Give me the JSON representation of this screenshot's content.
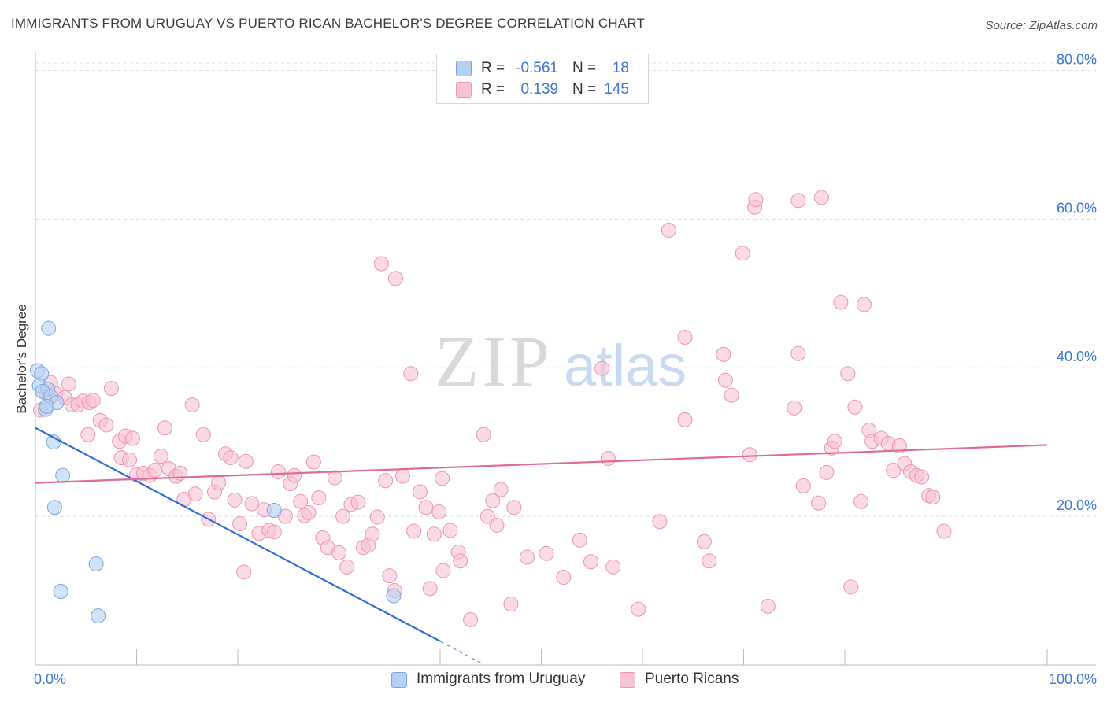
{
  "title": "IMMIGRANTS FROM URUGUAY VS PUERTO RICAN BACHELOR'S DEGREE CORRELATION CHART",
  "source": "Source: ZipAtlas.com",
  "watermark": {
    "zip": "ZIP",
    "atlas": "atlas"
  },
  "colors": {
    "blue_fill": "#b6d0f2",
    "blue_stroke": "#7aa5e0",
    "blue_line": "#2d6fd4",
    "pink_fill": "#f7c2d2",
    "pink_stroke": "#eb95b0",
    "pink_line": "#e0689a",
    "accent_text": "#3d77d0",
    "grid": "#dcdcdc"
  },
  "legend_top": {
    "rows": [
      {
        "series": "Immigrants from Uruguay",
        "r_label": "R =",
        "r_value": "-0.561",
        "n_label": "N =",
        "n_value": "18"
      },
      {
        "series": "Puerto Ricans",
        "r_label": "R =",
        "r_value": "0.139",
        "n_label": "N =",
        "n_value": "145"
      }
    ]
  },
  "chart_data": {
    "type": "scatter",
    "title": "IMMIGRANTS FROM URUGUAY VS PUERTO RICAN BACHELOR'S DEGREE CORRELATION CHART",
    "xlabel": "",
    "ylabel": "Bachelor's Degree",
    "xlim": [
      0,
      100
    ],
    "ylim": [
      0,
      81
    ],
    "x_tick_labels": [
      "0.0%",
      "100.0%"
    ],
    "y_tick_values": [
      20,
      40,
      60,
      80
    ],
    "y_tick_labels": [
      "20.0%",
      "40.0%",
      "60.0%",
      "80.0%"
    ],
    "grid": true,
    "legend_position": "bottom",
    "series": [
      {
        "name": "Immigrants from Uruguay",
        "color": "#b6d0f2",
        "trend": {
          "x": [
            0,
            40
          ],
          "y": [
            31.9,
            3.2
          ],
          "dashed_to": [
            44,
            0.3
          ]
        },
        "points": [
          [
            0.2,
            39.6
          ],
          [
            0.6,
            39.2
          ],
          [
            0.4,
            37.6
          ],
          [
            1.2,
            37.1
          ],
          [
            0.7,
            36.8
          ],
          [
            1.5,
            36.1
          ],
          [
            2.1,
            35.3
          ],
          [
            1.0,
            34.4
          ],
          [
            1.3,
            45.3
          ],
          [
            1.8,
            30.0
          ],
          [
            2.7,
            25.5
          ],
          [
            1.9,
            21.2
          ],
          [
            23.6,
            20.8
          ],
          [
            6.0,
            13.6
          ],
          [
            2.5,
            9.9
          ],
          [
            6.2,
            6.6
          ],
          [
            35.4,
            9.3
          ],
          [
            1.1,
            34.8
          ]
        ]
      },
      {
        "name": "Puerto Ricans",
        "color": "#f7c2d2",
        "trend": {
          "x": [
            0,
            100
          ],
          "y": [
            24.5,
            29.6
          ]
        },
        "points": [
          [
            0.5,
            34.3
          ],
          [
            1.1,
            36.5
          ],
          [
            1.5,
            38.0
          ],
          [
            2.0,
            36.5
          ],
          [
            2.9,
            36.0
          ],
          [
            3.3,
            37.8
          ],
          [
            3.6,
            35.0
          ],
          [
            4.2,
            35.0
          ],
          [
            4.7,
            35.5
          ],
          [
            5.3,
            35.3
          ],
          [
            5.7,
            35.6
          ],
          [
            6.4,
            32.9
          ],
          [
            7.0,
            32.3
          ],
          [
            5.2,
            31.0
          ],
          [
            7.5,
            37.2
          ],
          [
            8.3,
            30.1
          ],
          [
            8.9,
            30.8
          ],
          [
            9.6,
            30.5
          ],
          [
            8.5,
            27.9
          ],
          [
            9.3,
            27.6
          ],
          [
            10.0,
            25.6
          ],
          [
            10.7,
            25.8
          ],
          [
            11.3,
            25.5
          ],
          [
            11.8,
            26.2
          ],
          [
            12.4,
            28.1
          ],
          [
            12.8,
            31.9
          ],
          [
            13.2,
            26.4
          ],
          [
            13.9,
            25.4
          ],
          [
            14.3,
            25.8
          ],
          [
            14.7,
            22.3
          ],
          [
            15.5,
            35.0
          ],
          [
            15.8,
            23.0
          ],
          [
            16.6,
            31.0
          ],
          [
            17.1,
            19.6
          ],
          [
            17.7,
            23.3
          ],
          [
            18.1,
            24.5
          ],
          [
            18.8,
            28.4
          ],
          [
            19.3,
            27.9
          ],
          [
            19.7,
            22.2
          ],
          [
            20.2,
            19.0
          ],
          [
            20.8,
            27.4
          ],
          [
            21.4,
            21.7
          ],
          [
            22.1,
            17.7
          ],
          [
            22.6,
            20.9
          ],
          [
            23.1,
            18.1
          ],
          [
            23.6,
            17.9
          ],
          [
            24.0,
            26.0
          ],
          [
            24.7,
            20.0
          ],
          [
            25.2,
            24.4
          ],
          [
            25.6,
            25.5
          ],
          [
            26.2,
            22.0
          ],
          [
            26.6,
            20.1
          ],
          [
            27.0,
            20.5
          ],
          [
            27.5,
            27.3
          ],
          [
            28.0,
            22.5
          ],
          [
            28.4,
            17.1
          ],
          [
            28.9,
            15.8
          ],
          [
            29.6,
            25.2
          ],
          [
            30.0,
            15.1
          ],
          [
            30.4,
            20.0
          ],
          [
            30.8,
            13.2
          ],
          [
            31.2,
            21.6
          ],
          [
            31.9,
            21.9
          ],
          [
            32.4,
            15.8
          ],
          [
            32.9,
            16.1
          ],
          [
            33.3,
            17.6
          ],
          [
            33.8,
            19.9
          ],
          [
            34.2,
            54.0
          ],
          [
            34.6,
            24.8
          ],
          [
            35.0,
            12.0
          ],
          [
            35.5,
            10.0
          ],
          [
            36.3,
            25.4
          ],
          [
            37.1,
            39.2
          ],
          [
            37.4,
            18.0
          ],
          [
            38.0,
            23.3
          ],
          [
            38.6,
            21.2
          ],
          [
            39.0,
            10.3
          ],
          [
            39.4,
            17.6
          ],
          [
            39.9,
            20.6
          ],
          [
            40.3,
            12.7
          ],
          [
            41.0,
            18.1
          ],
          [
            41.8,
            15.2
          ],
          [
            42.0,
            14.0
          ],
          [
            44.3,
            31.0
          ],
          [
            44.7,
            20.0
          ],
          [
            45.2,
            22.1
          ],
          [
            45.6,
            18.8
          ],
          [
            46.0,
            23.6
          ],
          [
            47.0,
            8.2
          ],
          [
            47.3,
            21.2
          ],
          [
            48.6,
            14.5
          ],
          [
            50.5,
            15.0
          ],
          [
            52.2,
            11.8
          ],
          [
            53.8,
            16.8
          ],
          [
            54.9,
            13.9
          ],
          [
            57.1,
            13.2
          ],
          [
            56.6,
            27.8
          ],
          [
            59.6,
            7.5
          ],
          [
            61.7,
            19.3
          ],
          [
            71.1,
            61.6
          ],
          [
            62.6,
            58.5
          ],
          [
            69.9,
            55.4
          ],
          [
            56.0,
            39.9
          ],
          [
            64.2,
            44.1
          ],
          [
            66.1,
            16.6
          ],
          [
            66.6,
            14.0
          ],
          [
            68.0,
            41.8
          ],
          [
            68.2,
            38.3
          ],
          [
            64.2,
            33.0
          ],
          [
            68.8,
            36.3
          ],
          [
            70.6,
            28.3
          ],
          [
            75.4,
            62.5
          ],
          [
            71.2,
            62.6
          ],
          [
            77.7,
            62.9
          ],
          [
            75.0,
            34.6
          ],
          [
            75.4,
            41.9
          ],
          [
            75.9,
            24.1
          ],
          [
            77.4,
            21.8
          ],
          [
            78.2,
            25.9
          ],
          [
            78.7,
            29.2
          ],
          [
            79.0,
            30.1
          ],
          [
            79.6,
            48.8
          ],
          [
            80.3,
            39.2
          ],
          [
            80.6,
            10.5
          ],
          [
            81.0,
            34.7
          ],
          [
            81.6,
            22.0
          ],
          [
            81.9,
            48.5
          ],
          [
            82.4,
            31.6
          ],
          [
            82.7,
            30.1
          ],
          [
            83.6,
            30.5
          ],
          [
            84.3,
            29.8
          ],
          [
            84.8,
            26.2
          ],
          [
            85.4,
            29.5
          ],
          [
            85.9,
            27.1
          ],
          [
            86.5,
            26.0
          ],
          [
            87.1,
            25.5
          ],
          [
            87.6,
            25.3
          ],
          [
            88.3,
            22.8
          ],
          [
            88.7,
            22.6
          ],
          [
            89.8,
            18.0
          ],
          [
            43.0,
            6.1
          ],
          [
            40.2,
            25.1
          ],
          [
            20.6,
            12.5
          ],
          [
            35.6,
            52.0
          ],
          [
            72.4,
            7.9
          ]
        ]
      }
    ]
  },
  "legend_bottom": {
    "items": [
      "Immigrants from Uruguay",
      "Puerto Ricans"
    ]
  }
}
